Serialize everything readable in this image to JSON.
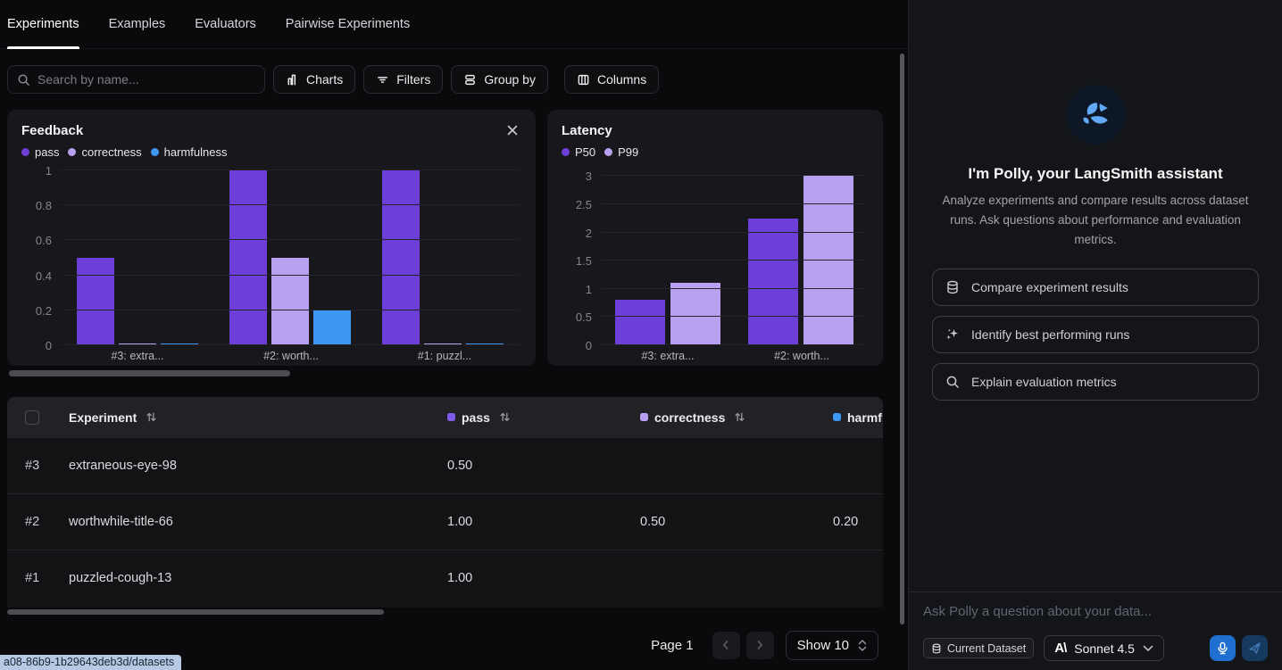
{
  "nav": {
    "tabs": [
      {
        "label": "Experiments",
        "active": true
      },
      {
        "label": "Examples",
        "active": false
      },
      {
        "label": "Evaluators",
        "active": false
      },
      {
        "label": "Pairwise Experiments",
        "active": false
      }
    ]
  },
  "toolbar": {
    "search_placeholder": "Search by name...",
    "charts_label": "Charts",
    "filters_label": "Filters",
    "group_by_label": "Group by",
    "columns_label": "Columns"
  },
  "chart_data": [
    {
      "type": "bar",
      "title": "Feedback",
      "closable": true,
      "categories": [
        "#3: extra...",
        "#2: worth...",
        "#1: puzzl..."
      ],
      "series": [
        {
          "name": "pass",
          "color": "#6d3fd8",
          "values": [
            0.5,
            1.0,
            1.0
          ]
        },
        {
          "name": "correctness",
          "color": "#b7a1f0",
          "values": [
            0,
            0.5,
            0
          ]
        },
        {
          "name": "harmfulness",
          "color": "#3d97f0",
          "values": [
            0,
            0.2,
            0
          ]
        }
      ],
      "yticks": [
        1,
        0.8,
        0.6,
        0.4,
        0.2,
        0
      ],
      "ylim": [
        0,
        1
      ],
      "grid": true,
      "legend_position": "top"
    },
    {
      "type": "bar",
      "title": "Latency",
      "closable": false,
      "categories": [
        "#3: extra...",
        "#2: worth..."
      ],
      "series": [
        {
          "name": "P50",
          "color": "#6d3fd8",
          "values": [
            0.8,
            2.25
          ]
        },
        {
          "name": "P99",
          "color": "#b7a1f0",
          "values": [
            1.1,
            3.02
          ]
        }
      ],
      "yticks": [
        3,
        2.5,
        2,
        1.5,
        1,
        0.5,
        0
      ],
      "ylim": [
        0,
        3.1
      ],
      "grid": true,
      "legend_position": "top"
    }
  ],
  "table": {
    "columns": [
      {
        "label": "Experiment",
        "dot_color": "",
        "sortable": true
      },
      {
        "label": "pass",
        "dot_color": "#7c5ce8",
        "sortable": true
      },
      {
        "label": "correctness",
        "dot_color": "#b7a1f0",
        "sortable": true
      },
      {
        "label": "harmf",
        "dot_color": "#3d97f0",
        "sortable": false
      }
    ],
    "rows": [
      {
        "rank": "#3",
        "name": "extraneous-eye-98",
        "pass": "0.50",
        "correctness": "",
        "harmfulness": ""
      },
      {
        "rank": "#2",
        "name": "worthwhile-title-66",
        "pass": "1.00",
        "correctness": "0.50",
        "harmfulness": "0.20"
      },
      {
        "rank": "#1",
        "name": "puzzled-cough-13",
        "pass": "1.00",
        "correctness": "",
        "harmfulness": ""
      }
    ]
  },
  "pagination": {
    "page_label": "Page 1",
    "show_label": "Show 10"
  },
  "assistant": {
    "title": "I'm Polly, your LangSmith assistant",
    "description": "Analyze experiments and compare results across dataset runs. Ask questions about performance and evaluation metrics.",
    "suggestions": [
      {
        "icon": "database-icon",
        "label": "Compare experiment results"
      },
      {
        "icon": "sparkles-icon",
        "label": "Identify best performing runs"
      },
      {
        "icon": "search-icon",
        "label": "Explain evaluation metrics"
      }
    ],
    "input_placeholder": "Ask Polly a question about your data...",
    "dataset_chip_label": "Current Dataset",
    "model_label": "Sonnet 4.5"
  },
  "status_tooltip": "a08-86b9-1b29643deb3d/datasets",
  "colors": {
    "pass": "#6d3fd8",
    "correctness": "#b7a1f0",
    "harmfulness": "#3d97f0",
    "p50": "#6d3fd8",
    "p99": "#b7a1f0",
    "mic_button": "#1f6fd0",
    "send_button": "#16395f",
    "send_icon": "#3f74ae"
  }
}
